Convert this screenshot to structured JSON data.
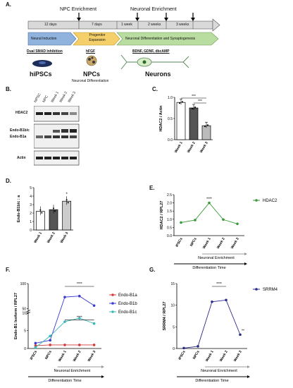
{
  "panels": {
    "A": "A.",
    "B": "B.",
    "C": "C.",
    "D": "D.",
    "E": "E.",
    "F": "F.",
    "G": "G."
  },
  "timeline": {
    "npc_enrichment": "NPC Enrichment",
    "neuronal_enrichment": "Neuronal Enrichment",
    "durations": [
      "12 days",
      "7 days",
      "1 week",
      "2 weeks",
      "3 weeks"
    ],
    "stages": [
      "Neural Induction",
      "Progenitor Expansion",
      "Neuronal Differentiation and Synaptogenesis"
    ],
    "treatments": [
      "Dual SMAD Inhibition",
      "hFGF",
      "BDNF, GDNF, dbcAMP"
    ],
    "cells": [
      "hiPSCs",
      "NPCs",
      "Neurons"
    ],
    "neuronal_differentiation": "Neuronal Differentiation",
    "colors": {
      "bar": "#d9d9d9",
      "induction": "#8fb3dc",
      "expansion": "#f5d06a",
      "differentiation": "#b9dca0"
    }
  },
  "blot": {
    "lanes": [
      "hiPSC",
      "NPC",
      "Week 1",
      "Week 2",
      "Week 3"
    ],
    "rows": [
      "HDAC2",
      "Endo-B1b/c",
      "Endo-B1a",
      "Actin"
    ]
  },
  "chart_data": [
    {
      "panel": "C",
      "type": "bar",
      "categories": [
        "Week 1",
        "Week 2",
        "Week 3"
      ],
      "values": [
        0.88,
        0.75,
        0.33
      ],
      "ylabel": "HDAC2 / Actin",
      "ylim": [
        0,
        1.0
      ],
      "yticks": [
        "0.0",
        "0.5",
        "1.0"
      ],
      "annotations": [
        "***",
        "***"
      ]
    },
    {
      "panel": "D",
      "type": "bar",
      "categories": [
        "Week 1",
        "Week 2",
        "Week 3"
      ],
      "values": [
        2.2,
        2.4,
        3.4
      ],
      "ylabel": "Endo-B1b/c : a",
      "ylim": [
        0,
        5
      ],
      "yticks": [
        "0",
        "1",
        "2",
        "3",
        "4",
        "5"
      ],
      "annotations": [
        "*"
      ]
    },
    {
      "panel": "E",
      "type": "line",
      "categories": [
        "iPSCs",
        "NPCs",
        "Week 1",
        "Week 2",
        "Week 3"
      ],
      "series": [
        {
          "name": "HDAC2",
          "values": [
            0.8,
            0.95,
            2.0,
            0.98,
            0.72
          ],
          "color": "#3a9a3a"
        }
      ],
      "ylabel": "HDAC2 / RPL27",
      "ylim": [
        0,
        2.5
      ],
      "yticks": [
        "0.0",
        "0.5",
        "1.0",
        "1.5",
        "2.0",
        "2.5"
      ],
      "annotations": [
        "****"
      ],
      "xlabel1": "Neuronal Enrichment",
      "xlabel2": "Differentiation Time"
    },
    {
      "panel": "F",
      "type": "line",
      "categories": [
        "iPSCs",
        "NPCs",
        "Week 1",
        "Week 2",
        "Week 3"
      ],
      "series": [
        {
          "name": "Endo-B1a",
          "values": [
            0.8,
            1.0,
            1.0,
            1.0,
            1.0
          ],
          "color": "#d23a3a"
        },
        {
          "name": "Endo-B1b",
          "values": [
            1.5,
            2.3,
            73,
            75,
            56
          ],
          "color": "#3a3ad2"
        },
        {
          "name": "Endo-B1c",
          "values": [
            0.3,
            3.5,
            7.5,
            8.5,
            7.0
          ],
          "color": "#3ab8b8"
        }
      ],
      "ylabel": "Endo-B1 Isoform / RPL27",
      "yticks": [
        "0",
        "5",
        "10",
        "50",
        "100"
      ],
      "annotations": [
        "****",
        "****"
      ],
      "xlabel1": "Neuronal Enrichment",
      "xlabel2": "Differentiation Time"
    },
    {
      "panel": "G",
      "type": "line",
      "categories": [
        "iPSCs",
        "NPCs",
        "Week 1",
        "Week 2",
        "Week 3"
      ],
      "series": [
        {
          "name": "SRRM4",
          "values": [
            0.1,
            0.5,
            10.8,
            11.2,
            3.2
          ],
          "color": "#2a2a8a"
        }
      ],
      "ylabel": "SRRM4 / RPL27",
      "ylim": [
        0,
        15
      ],
      "yticks": [
        "0",
        "5",
        "10",
        "15"
      ],
      "annotations": [
        "****",
        "**"
      ],
      "xlabel1": "Neuronal Enrichment",
      "xlabel2": "Differentiation Time"
    }
  ]
}
